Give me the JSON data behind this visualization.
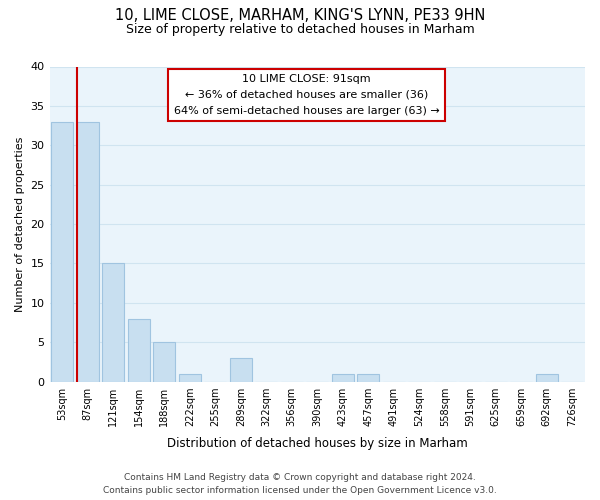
{
  "title": "10, LIME CLOSE, MARHAM, KING'S LYNN, PE33 9HN",
  "subtitle": "Size of property relative to detached houses in Marham",
  "xlabel": "Distribution of detached houses by size in Marham",
  "ylabel": "Number of detached properties",
  "bar_color": "#c8dff0",
  "bar_edge_color": "#a0c4e0",
  "grid_color": "#d0e4f0",
  "background_color": "#eaf4fb",
  "bins": [
    "53sqm",
    "87sqm",
    "121sqm",
    "154sqm",
    "188sqm",
    "222sqm",
    "255sqm",
    "289sqm",
    "322sqm",
    "356sqm",
    "390sqm",
    "423sqm",
    "457sqm",
    "491sqm",
    "524sqm",
    "558sqm",
    "591sqm",
    "625sqm",
    "659sqm",
    "692sqm",
    "726sqm"
  ],
  "values": [
    33,
    33,
    15,
    8,
    5,
    1,
    0,
    3,
    0,
    0,
    0,
    1,
    1,
    0,
    0,
    0,
    0,
    0,
    0,
    1,
    0
  ],
  "ylim": [
    0,
    40
  ],
  "yticks": [
    0,
    5,
    10,
    15,
    20,
    25,
    30,
    35,
    40
  ],
  "property_line_color": "#cc0000",
  "annotation_text_line1": "10 LIME CLOSE: 91sqm",
  "annotation_text_line2": "← 36% of detached houses are smaller (36)",
  "annotation_text_line3": "64% of semi-detached houses are larger (63) →",
  "footer_line1": "Contains HM Land Registry data © Crown copyright and database right 2024.",
  "footer_line2": "Contains public sector information licensed under the Open Government Licence v3.0."
}
